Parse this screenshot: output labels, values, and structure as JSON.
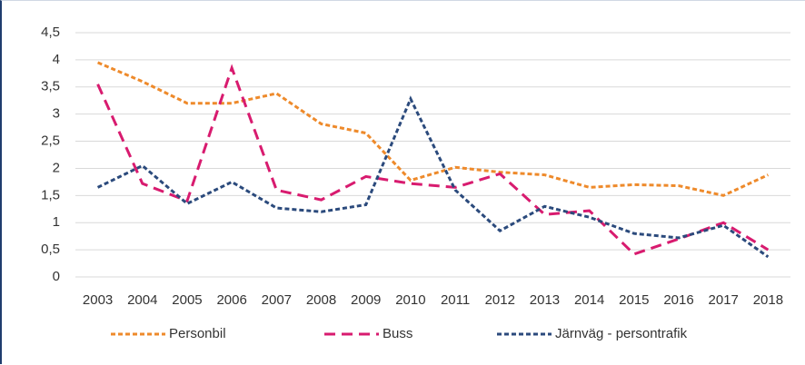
{
  "chart_data": {
    "type": "line",
    "categories": [
      "2003",
      "2004",
      "2005",
      "2006",
      "2007",
      "2008",
      "2009",
      "2010",
      "2011",
      "2012",
      "2013",
      "2014",
      "2015",
      "2016",
      "2017",
      "2018"
    ],
    "series": [
      {
        "name": "Personbil",
        "color": "#ee8a2b",
        "values": [
          3.95,
          3.6,
          3.2,
          3.2,
          3.38,
          2.82,
          2.65,
          1.78,
          2.02,
          1.93,
          1.88,
          1.65,
          1.7,
          1.68,
          1.5,
          1.88
        ]
      },
      {
        "name": "Buss",
        "color": "#d81b6f",
        "values": [
          3.55,
          1.72,
          1.4,
          3.85,
          1.6,
          1.42,
          1.85,
          1.72,
          1.65,
          1.9,
          1.15,
          1.22,
          0.42,
          0.7,
          1.0,
          0.5
        ]
      },
      {
        "name": "Järnväg - persontrafik",
        "color": "#2b4a7c",
        "values": [
          1.65,
          2.05,
          1.35,
          1.75,
          1.27,
          1.2,
          1.33,
          3.28,
          1.6,
          0.85,
          1.3,
          1.1,
          0.8,
          0.72,
          0.95,
          0.37
        ]
      }
    ],
    "ylim": [
      0,
      4.5
    ],
    "yticks": [
      0,
      {
        "value": 0.5,
        "label": "0,5"
      },
      1,
      {
        "value": 1.5,
        "label": "1,5"
      },
      2,
      {
        "value": 2.5,
        "label": "2,5"
      },
      3,
      {
        "value": 3.5,
        "label": "3,5"
      },
      4,
      {
        "value": 4.5,
        "label": "4,5"
      }
    ],
    "grid": true,
    "legend": "bottom"
  }
}
